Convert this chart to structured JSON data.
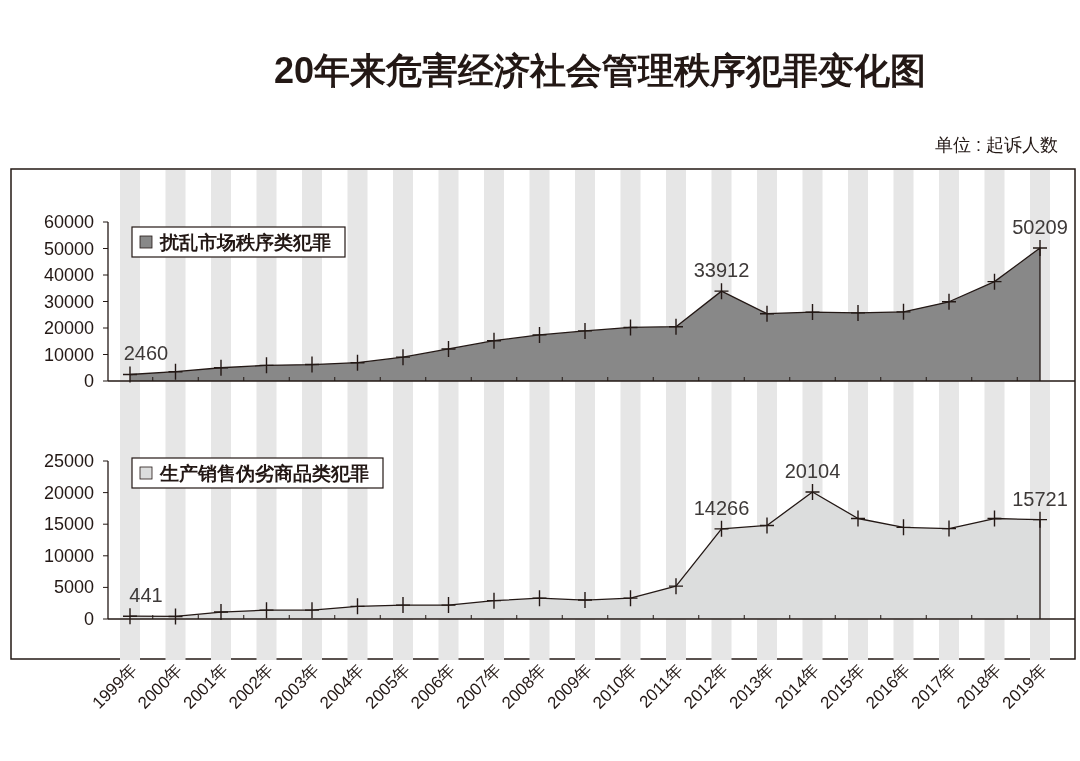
{
  "chart_data": [
    {
      "type": "area",
      "title": "20年来危害经济社会管理秩序犯罪变化图",
      "annotations": [
        "单位 : 起诉人数"
      ],
      "categories": [
        "1999年",
        "2000年",
        "2001年",
        "2002年",
        "2003年",
        "2004年",
        "2005年",
        "2006年",
        "2007年",
        "2008年",
        "2009年",
        "2010年",
        "2011年",
        "2012年",
        "2013年",
        "2014年",
        "2015年",
        "2016年",
        "2017年",
        "2018年",
        "2019年"
      ],
      "series": [
        {
          "name": "扰乱市场秩序类犯罪",
          "color": "#888888",
          "values": [
            2460,
            3500,
            5000,
            5900,
            6200,
            6900,
            9000,
            12100,
            15200,
            17400,
            18900,
            20200,
            20500,
            33912,
            25400,
            26000,
            25700,
            26100,
            29900,
            37500,
            50209
          ],
          "value_labels": [
            "2460",
            null,
            null,
            null,
            null,
            null,
            null,
            null,
            null,
            null,
            null,
            null,
            null,
            "33912",
            null,
            null,
            null,
            null,
            null,
            null,
            "50209"
          ]
        }
      ],
      "ylim": [
        0,
        60000
      ],
      "yticks": [
        0,
        10000,
        20000,
        30000,
        40000,
        50000,
        60000
      ],
      "tick_labels": "y",
      "marker": "cross",
      "line_style": "solid",
      "legend": "top left",
      "grid": false,
      "bands": [
        {
          "axis": "x",
          "from": "1999年",
          "to": "1999年",
          "color": "#e6e6e6"
        },
        {
          "axis": "x",
          "from": "2000年",
          "to": "2000年",
          "color": "#e6e6e6"
        },
        {
          "axis": "x",
          "from": "2001年",
          "to": "2001年",
          "color": "#e6e6e6"
        },
        {
          "axis": "x",
          "from": "2002年",
          "to": "2002年",
          "color": "#e6e6e6"
        },
        {
          "axis": "x",
          "from": "2003年",
          "to": "2003年",
          "color": "#e6e6e6"
        },
        {
          "axis": "x",
          "from": "2004年",
          "to": "2004年",
          "color": "#e6e6e6"
        },
        {
          "axis": "x",
          "from": "2005年",
          "to": "2005年",
          "color": "#e6e6e6"
        },
        {
          "axis": "x",
          "from": "2006年",
          "to": "2006年",
          "color": "#e6e6e6"
        },
        {
          "axis": "x",
          "from": "2007年",
          "to": "2007年",
          "color": "#e6e6e6"
        },
        {
          "axis": "x",
          "from": "2008年",
          "to": "2008年",
          "color": "#e6e6e6"
        },
        {
          "axis": "x",
          "from": "2009年",
          "to": "2009年",
          "color": "#e6e6e6"
        },
        {
          "axis": "x",
          "from": "2010年",
          "to": "2010年",
          "color": "#e6e6e6"
        },
        {
          "axis": "x",
          "from": "2011年",
          "to": "2011年",
          "color": "#e6e6e6"
        },
        {
          "axis": "x",
          "from": "2012年",
          "to": "2012年",
          "color": "#e6e6e6"
        },
        {
          "axis": "x",
          "from": "2013年",
          "to": "2013年",
          "color": "#e6e6e6"
        },
        {
          "axis": "x",
          "from": "2014年",
          "to": "2014年",
          "color": "#e6e6e6"
        },
        {
          "axis": "x",
          "from": "2015年",
          "to": "2015年",
          "color": "#e6e6e6"
        },
        {
          "axis": "x",
          "from": "2016年",
          "to": "2016年",
          "color": "#e6e6e6"
        },
        {
          "axis": "x",
          "from": "2017年",
          "to": "2017年",
          "color": "#e6e6e6"
        },
        {
          "axis": "x",
          "from": "2018年",
          "to": "2018年",
          "color": "#e6e6e6"
        },
        {
          "axis": "x",
          "from": "2019年",
          "to": "2019年",
          "color": "#e6e6e6"
        }
      ]
    },
    {
      "type": "area",
      "categories": [
        "1999年",
        "2000年",
        "2001年",
        "2002年",
        "2003年",
        "2004年",
        "2005年",
        "2006年",
        "2007年",
        "2008年",
        "2009年",
        "2010年",
        "2011年",
        "2012年",
        "2013年",
        "2014年",
        "2015年",
        "2016年",
        "2017年",
        "2018年",
        "2019年"
      ],
      "series": [
        {
          "name": "生产销售伪劣商品类犯罪",
          "color": "#dcdddd",
          "values": [
            441,
            400,
            1100,
            1400,
            1400,
            2000,
            2200,
            2200,
            2900,
            3300,
            3000,
            3300,
            5200,
            14266,
            14800,
            20104,
            15900,
            14500,
            14300,
            15900,
            15721
          ],
          "value_labels": [
            "441",
            null,
            null,
            null,
            null,
            null,
            null,
            null,
            null,
            null,
            null,
            null,
            null,
            "14266",
            null,
            "20104",
            null,
            null,
            null,
            null,
            "15721"
          ]
        }
      ],
      "ylim": [
        0,
        25000
      ],
      "yticks": [
        0,
        5000,
        10000,
        15000,
        20000,
        25000
      ],
      "marker": "cross",
      "line_style": "solid",
      "legend": "top left",
      "grid": false,
      "bands": [
        {
          "axis": "x",
          "from": "1999年",
          "to": "1999年",
          "color": "#e6e6e6"
        },
        {
          "axis": "x",
          "from": "2000年",
          "to": "2000年",
          "color": "#e6e6e6"
        },
        {
          "axis": "x",
          "from": "2001年",
          "to": "2001年",
          "color": "#e6e6e6"
        },
        {
          "axis": "x",
          "from": "2002年",
          "to": "2002年",
          "color": "#e6e6e6"
        },
        {
          "axis": "x",
          "from": "2003年",
          "to": "2003年",
          "color": "#e6e6e6"
        },
        {
          "axis": "x",
          "from": "2004年",
          "to": "2004年",
          "color": "#e6e6e6"
        },
        {
          "axis": "x",
          "from": "2005年",
          "to": "2005年",
          "color": "#e6e6e6"
        },
        {
          "axis": "x",
          "from": "2006年",
          "to": "2006年",
          "color": "#e6e6e6"
        },
        {
          "axis": "x",
          "from": "2007年",
          "to": "2007年",
          "color": "#e6e6e6"
        },
        {
          "axis": "x",
          "from": "2008年",
          "to": "2008年",
          "color": "#e6e6e6"
        },
        {
          "axis": "x",
          "from": "2009年",
          "to": "2009年",
          "color": "#e6e6e6"
        },
        {
          "axis": "x",
          "from": "2010年",
          "to": "2010年",
          "color": "#e6e6e6"
        },
        {
          "axis": "x",
          "from": "2011年",
          "to": "2011年",
          "color": "#e6e6e6"
        },
        {
          "axis": "x",
          "from": "2012年",
          "to": "2012年",
          "color": "#e6e6e6"
        },
        {
          "axis": "x",
          "from": "2013年",
          "to": "2013年",
          "color": "#e6e6e6"
        },
        {
          "axis": "x",
          "from": "2014年",
          "to": "2014年",
          "color": "#e6e6e6"
        },
        {
          "axis": "x",
          "from": "2015年",
          "to": "2015年",
          "color": "#e6e6e6"
        },
        {
          "axis": "x",
          "from": "2016年",
          "to": "2016年",
          "color": "#e6e6e6"
        },
        {
          "axis": "x",
          "from": "2017年",
          "to": "2017年",
          "color": "#e6e6e6"
        },
        {
          "axis": "x",
          "from": "2018年",
          "to": "2018年",
          "color": "#e6e6e6"
        },
        {
          "axis": "x",
          "from": "2019年",
          "to": "2019年",
          "color": "#e6e6e6"
        }
      ]
    }
  ]
}
